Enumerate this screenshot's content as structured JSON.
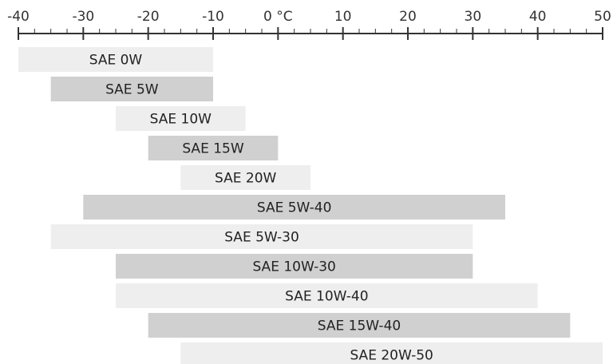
{
  "chart_data": {
    "type": "bar",
    "orientation": "horizontal-range",
    "title": "",
    "xlabel": "",
    "ylabel": "",
    "xlim": [
      -40,
      50
    ],
    "x_ticks": [
      {
        "value": -40,
        "label": "-40"
      },
      {
        "value": -30,
        "label": "-30"
      },
      {
        "value": -20,
        "label": "-20"
      },
      {
        "value": -10,
        "label": "-10"
      },
      {
        "value": 0,
        "label": "0 °C"
      },
      {
        "value": 10,
        "label": "10"
      },
      {
        "value": 20,
        "label": "20"
      },
      {
        "value": 30,
        "label": "30"
      },
      {
        "value": 40,
        "label": "40"
      },
      {
        "value": 50,
        "label": "50"
      }
    ],
    "minor_tick_step": 2.5,
    "grid": false,
    "categories": [
      "SAE 0W",
      "SAE 5W",
      "SAE 10W",
      "SAE 15W",
      "SAE 20W",
      "SAE 5W-40",
      "SAE 5W-30",
      "SAE 10W-30",
      "SAE 10W-40",
      "SAE 15W-40",
      "SAE 20W-50"
    ],
    "ranges": [
      {
        "label": "SAE 0W",
        "min": -40,
        "max": -10
      },
      {
        "label": "SAE 5W",
        "min": -35,
        "max": -10
      },
      {
        "label": "SAE 10W",
        "min": -25,
        "max": -5
      },
      {
        "label": "SAE 15W",
        "min": -20,
        "max": 0
      },
      {
        "label": "SAE 20W",
        "min": -15,
        "max": 5
      },
      {
        "label": "SAE 5W-40",
        "min": -30,
        "max": 35
      },
      {
        "label": "SAE 5W-30",
        "min": -35,
        "max": 30
      },
      {
        "label": "SAE 10W-30",
        "min": -25,
        "max": 30
      },
      {
        "label": "SAE 10W-40",
        "min": -25,
        "max": 40
      },
      {
        "label": "SAE 15W-40",
        "min": -20,
        "max": 45
      },
      {
        "label": "SAE 20W-50",
        "min": -15,
        "max": 50
      }
    ],
    "colors": {
      "axis": "#333333",
      "bar_light": "#eeeeef",
      "bar_dark": "#d0d0d1",
      "label_text": "#222222"
    },
    "bar_shade_pattern": [
      "light",
      "dark",
      "light",
      "dark",
      "light",
      "dark",
      "light",
      "dark",
      "light",
      "dark",
      "light"
    ]
  }
}
